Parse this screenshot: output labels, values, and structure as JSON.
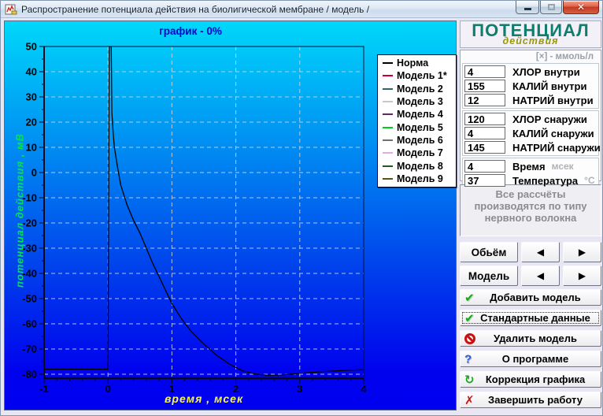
{
  "window": {
    "title": "Распространение потенциала действия на биолигической мембране  / модель /",
    "controls": {
      "minimize": "minimize",
      "maximize": "maximize (disabled)",
      "close": "close"
    }
  },
  "chart_data": {
    "type": "line",
    "title": "график - 0%",
    "xlabel": "время , мсек",
    "ylabel": "потенциал действия , мВ",
    "xlim": [
      -1,
      4
    ],
    "ylim": [
      -80,
      50
    ],
    "x_ticks": [
      -1,
      0,
      1,
      2,
      3,
      4
    ],
    "y_ticks": [
      50,
      40,
      30,
      20,
      10,
      0,
      -10,
      -20,
      -30,
      -40,
      -50,
      -60,
      -70,
      -80
    ],
    "x_minor_step": 0.2,
    "y_minor_step": 5,
    "grid": "dashed",
    "legend_position": "outside-top-right",
    "series": [
      {
        "name": "Норма",
        "color": "#000000",
        "points": [
          [
            -1,
            -78
          ],
          [
            0,
            -78
          ],
          [
            0.02,
            50
          ],
          [
            0.05,
            50
          ],
          [
            0.06,
            24
          ],
          [
            0.08,
            16
          ],
          [
            0.1,
            10
          ],
          [
            0.15,
            2
          ],
          [
            0.2,
            -5
          ],
          [
            0.3,
            -13
          ],
          [
            0.4,
            -19
          ],
          [
            0.5,
            -24
          ],
          [
            0.6,
            -30
          ],
          [
            0.7,
            -36
          ],
          [
            0.85,
            -44
          ],
          [
            1.0,
            -52
          ],
          [
            1.15,
            -58
          ],
          [
            1.3,
            -63
          ],
          [
            1.5,
            -68
          ],
          [
            1.7,
            -72.5
          ],
          [
            1.9,
            -76
          ],
          [
            2.1,
            -78.6
          ],
          [
            2.3,
            -79.9
          ],
          [
            2.5,
            -80.4
          ],
          [
            2.7,
            -80.3
          ],
          [
            2.9,
            -79.9
          ],
          [
            3.1,
            -79.4
          ],
          [
            3.4,
            -78.9
          ],
          [
            3.7,
            -78.5
          ],
          [
            4.0,
            -78.2
          ]
        ]
      }
    ],
    "legend": [
      {
        "label": "Норма",
        "color": "#000000"
      },
      {
        "label": "Модель 1*",
        "color": "#cc0033"
      },
      {
        "label": "Модель 2",
        "color": "#336666"
      },
      {
        "label": "Модель 3",
        "color": "#c8c8c8"
      },
      {
        "label": "Модель 4",
        "color": "#5a2d5a"
      },
      {
        "label": "Модель 5",
        "color": "#00cc22"
      },
      {
        "label": "Модель 6",
        "color": "#707070"
      },
      {
        "label": "Модель 7",
        "color": "#e8a8e8"
      },
      {
        "label": "Модель 8",
        "color": "#1d5c1d"
      },
      {
        "label": "Модель 9",
        "color": "#55551a"
      }
    ]
  },
  "side": {
    "header": {
      "title": "ПОТЕНЦИАЛ",
      "subtitle": "действия"
    },
    "unit_label": "[×] - ммоль/л",
    "field_groups": [
      {
        "rows": [
          {
            "name": "chlor-inside",
            "value": "4",
            "label": "ХЛОР внутри"
          },
          {
            "name": "kaliy-inside",
            "value": "155",
            "label": "КАЛИЙ внутри"
          },
          {
            "name": "natriy-inside",
            "value": "12",
            "label": "НАТРИЙ внутри"
          }
        ]
      },
      {
        "rows": [
          {
            "name": "chlor-outside",
            "value": "120",
            "label": "ХЛОР снаружи"
          },
          {
            "name": "kaliy-outside",
            "value": "4",
            "label": "КАЛИЙ снаружи"
          },
          {
            "name": "natriy-outside",
            "value": "145",
            "label": "НАТРИЙ снаружи"
          }
        ]
      },
      {
        "rows": [
          {
            "name": "time",
            "value": "4",
            "label": "Время",
            "unit": "мсек"
          },
          {
            "name": "temperature",
            "value": "37",
            "label": "Температура",
            "unit": "°C"
          }
        ]
      }
    ],
    "note": "Все рассчёты производятся по типу нервного волокна",
    "nav": [
      {
        "name": "volume",
        "label": "Обьём"
      },
      {
        "name": "model",
        "label": "Модель"
      }
    ],
    "nav_arrows": {
      "left": "◀",
      "right": "▶"
    },
    "actions": [
      {
        "name": "add-model",
        "icon": "check",
        "label": "Добавить модель"
      },
      {
        "name": "standard-data",
        "icon": "check",
        "label": "Стандартные данные",
        "focused": true
      },
      {
        "name": "delete-model",
        "icon": "no",
        "label": "Удалить модель"
      },
      {
        "name": "about",
        "icon": "question",
        "label": "О программе"
      },
      {
        "name": "graph-correction",
        "icon": "refresh",
        "label": "Коррекция графика"
      },
      {
        "name": "exit",
        "icon": "x",
        "label": "Завершить работу"
      }
    ]
  },
  "icons": {
    "check": "✔",
    "question": "?",
    "refresh": "↻",
    "x": "✗",
    "no": "circle-slash"
  },
  "colors": {
    "plot_gradient_top": "#00d8fa",
    "plot_gradient_bottom": "#0000ee",
    "chart_title": "#0000cf",
    "x_label": "#f5f55a",
    "y_label": "#00e54d",
    "header_teal": "#0e7d6e",
    "header_olive": "#98980a",
    "close_button": "#cf3a22",
    "check_green": "#18a818",
    "danger_red": "#cc1111",
    "question_blue": "#2b5fd9"
  }
}
